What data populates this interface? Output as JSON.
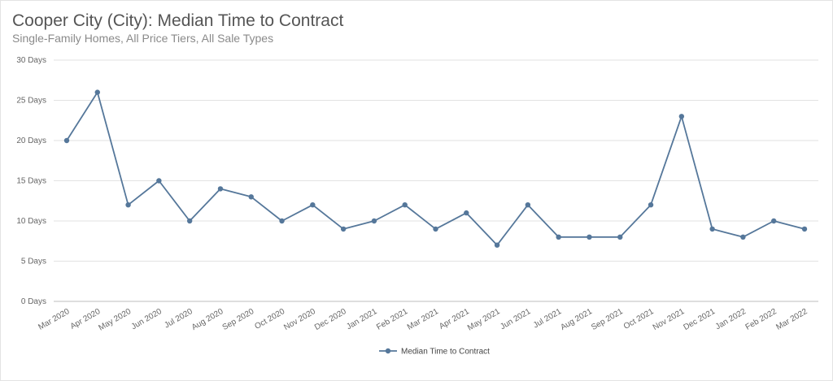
{
  "chart_data": {
    "type": "line",
    "title": "Cooper City (City): Median Time to Contract",
    "subtitle": "Single-Family Homes, All Price Tiers, All Sale Types",
    "xlabel": "",
    "ylabel": "",
    "ylim": [
      0,
      30
    ],
    "y_ticks": [
      "0 Days",
      "5 Days",
      "10 Days",
      "15 Days",
      "20 Days",
      "25 Days",
      "30 Days"
    ],
    "y_tick_values": [
      0,
      5,
      10,
      15,
      20,
      25,
      30
    ],
    "categories": [
      "Mar 2020",
      "Apr 2020",
      "May 2020",
      "Jun 2020",
      "Jul 2020",
      "Aug 2020",
      "Sep 2020",
      "Oct 2020",
      "Nov 2020",
      "Dec 2020",
      "Jan 2021",
      "Feb 2021",
      "Mar 2021",
      "Apr 2021",
      "May 2021",
      "Jun 2021",
      "Jul 2021",
      "Aug 2021",
      "Sep 2021",
      "Oct 2021",
      "Nov 2021",
      "Dec 2021",
      "Jan 2022",
      "Feb 2022",
      "Mar 2022"
    ],
    "series": [
      {
        "name": "Median Time to Contract",
        "color": "#55779a",
        "values": [
          20,
          26,
          12,
          15,
          10,
          14,
          13,
          10,
          12,
          9,
          10,
          12,
          9,
          11,
          7,
          12,
          8,
          8,
          8,
          12,
          23,
          9,
          8,
          10,
          9
        ]
      }
    ],
    "grid": true,
    "legend": "bottom-center"
  }
}
